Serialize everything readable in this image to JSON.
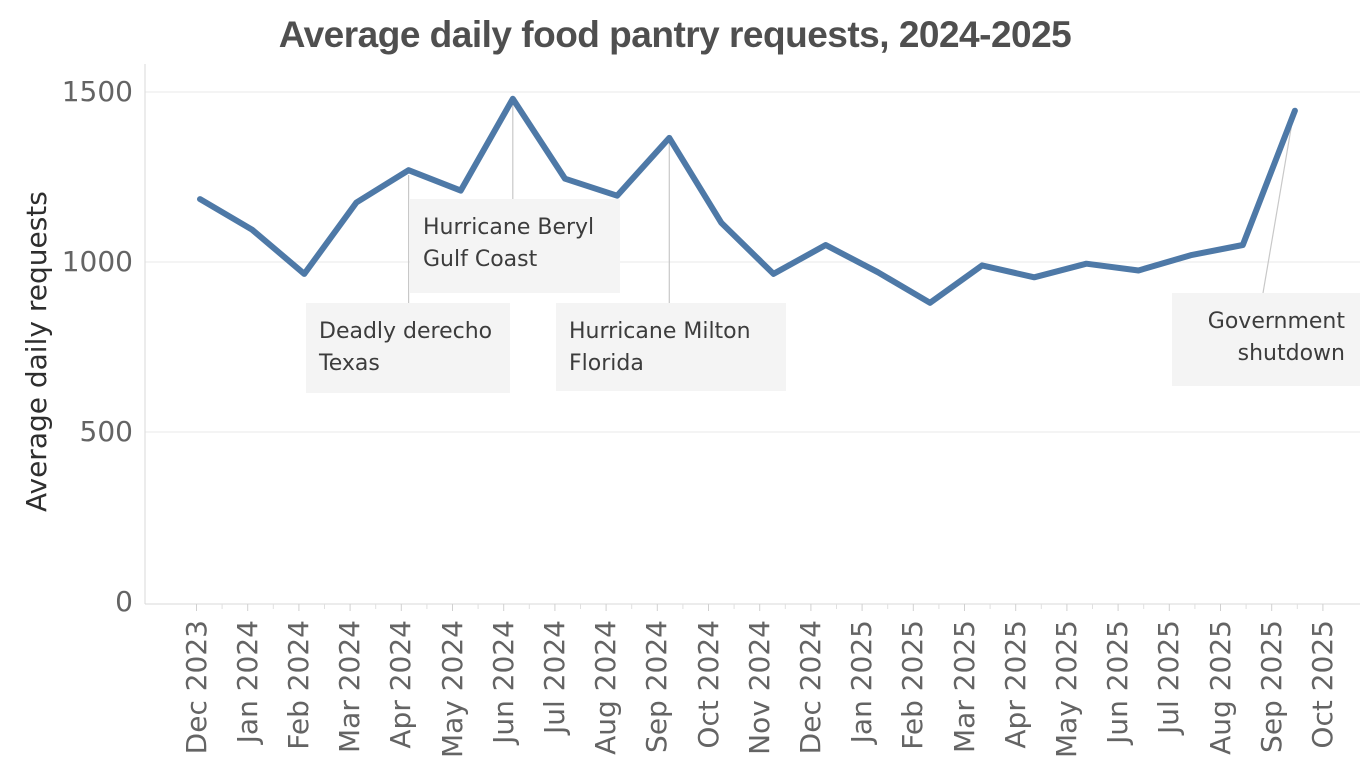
{
  "title": "Average daily food pantry requests, 2024-2025",
  "chart_data": {
    "type": "line",
    "title": "Average daily food pantry requests, 2024-2025",
    "ylabel": "Average daily requests",
    "xlabel": "",
    "categories": [
      "Dec 2023",
      "Jan 2024",
      "Feb 2024",
      "Mar 2024",
      "Apr 2024",
      "May 2024",
      "Jun 2024",
      "Jul 2024",
      "Aug 2024",
      "Sep 2024",
      "Oct 2024",
      "Nov 2024",
      "Dec 2024",
      "Jan 2025",
      "Feb 2025",
      "Mar 2025",
      "Apr 2025",
      "May 2025",
      "Jun 2025",
      "Jul 2025",
      "Aug 2025",
      "Sep 2025"
    ],
    "x_axis_labels": [
      "Dec 2023",
      "Jan 2024",
      "Feb 2024",
      "Mar 2024",
      "Apr 2024",
      "May 2024",
      "Jun 2024",
      "Jul 2024",
      "Aug 2024",
      "Sep 2024",
      "Oct 2024",
      "Nov 2024",
      "Dec 2024",
      "Jan 2025",
      "Feb 2025",
      "Mar 2025",
      "Apr 2025",
      "May 2025",
      "Jun 2025",
      "Jul 2025",
      "Aug 2025",
      "Sep 2025",
      "Oct 2025"
    ],
    "series": [
      {
        "name": "Average daily requests",
        "values": [
          1185,
          1095,
          965,
          1175,
          1270,
          1210,
          1480,
          1245,
          1195,
          1365,
          1115,
          965,
          1050,
          970,
          880,
          990,
          955,
          995,
          975,
          1020,
          1050,
          1445
        ]
      }
    ],
    "y_ticks": [
      0,
      500,
      1000,
      1500
    ],
    "ylim": [
      0,
      1550
    ],
    "grid": "horizontal",
    "legend": "none",
    "line_color": "#4e79a7",
    "grid_color": "#eaeaea",
    "axis_color": "#d9d9d9",
    "tick_label_color": "#646464",
    "annotation_box_color": "#f4f4f4",
    "annotations": [
      {
        "text_line1": "Deadly derecho",
        "text_line2": "Texas",
        "anchor": "Apr 2024",
        "anchor_value": 1270
      },
      {
        "text_line1": "Hurricane Beryl",
        "text_line2": "Gulf Coast",
        "anchor": "Jun 2024",
        "anchor_value": 1480
      },
      {
        "text_line1": "Hurricane Milton",
        "text_line2": "Florida",
        "anchor": "Sep 2024",
        "anchor_value": 1365
      },
      {
        "text_line1": "Government",
        "text_line2": "shutdown",
        "anchor": "Sep 2025",
        "anchor_value": 1445
      }
    ]
  }
}
